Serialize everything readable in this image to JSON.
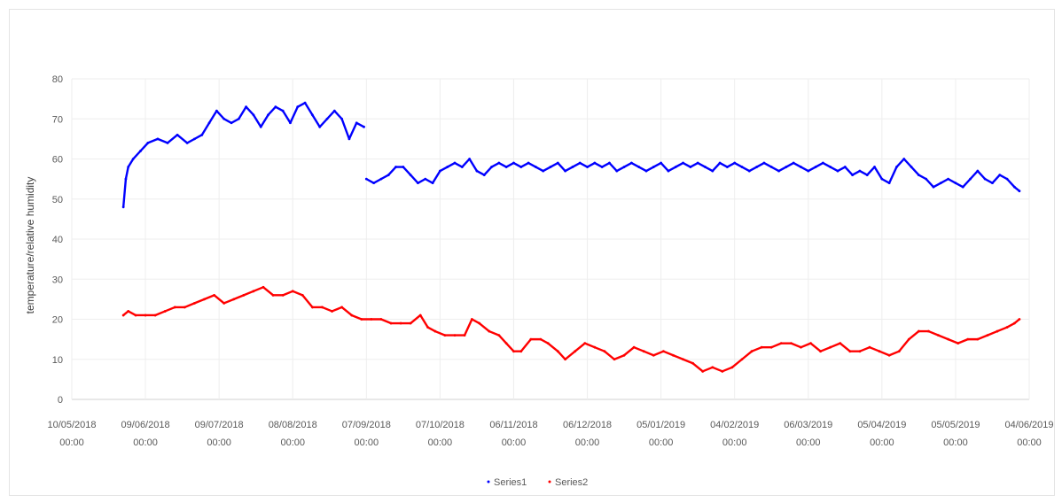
{
  "chart_data": {
    "type": "scatter",
    "title": "",
    "xlabel": "",
    "ylabel": "temperature/relative humidity",
    "ylim": [
      0,
      80
    ],
    "yticks": [
      0,
      10,
      20,
      30,
      40,
      50,
      60,
      70,
      80
    ],
    "xlim": [
      "2018-05-10",
      "2019-06-04"
    ],
    "xticks": [
      {
        "date": "2018-05-10",
        "line1": "10/05/2018",
        "line2": "00:00"
      },
      {
        "date": "2018-06-09",
        "line1": "09/06/2018",
        "line2": "00:00"
      },
      {
        "date": "2018-07-09",
        "line1": "09/07/2018",
        "line2": "00:00"
      },
      {
        "date": "2018-08-08",
        "line1": "08/08/2018",
        "line2": "00:00"
      },
      {
        "date": "2018-09-07",
        "line1": "07/09/2018",
        "line2": "00:00"
      },
      {
        "date": "2018-10-07",
        "line1": "07/10/2018",
        "line2": "00:00"
      },
      {
        "date": "2018-11-06",
        "line1": "06/11/2018",
        "line2": "00:00"
      },
      {
        "date": "2018-12-06",
        "line1": "06/12/2018",
        "line2": "00:00"
      },
      {
        "date": "2019-01-05",
        "line1": "05/01/2019",
        "line2": "00:00"
      },
      {
        "date": "2019-02-04",
        "line1": "04/02/2019",
        "line2": "00:00"
      },
      {
        "date": "2019-03-06",
        "line1": "06/03/2019",
        "line2": "00:00"
      },
      {
        "date": "2019-04-05",
        "line1": "05/04/2019",
        "line2": "00:00"
      },
      {
        "date": "2019-05-05",
        "line1": "05/05/2019",
        "line2": "00:00"
      },
      {
        "date": "2019-06-04",
        "line1": "04/06/2019",
        "line2": "00:00"
      }
    ],
    "grid": true,
    "legend": "bottom",
    "series": [
      {
        "name": "Series1",
        "color": "#0000ff",
        "points": [
          [
            "2018-05-31",
            48
          ],
          [
            "2018-06-01",
            55
          ],
          [
            "2018-06-02",
            58
          ],
          [
            "2018-06-04",
            60
          ],
          [
            "2018-06-07",
            62
          ],
          [
            "2018-06-10",
            64
          ],
          [
            "2018-06-14",
            65
          ],
          [
            "2018-06-18",
            64
          ],
          [
            "2018-06-22",
            66
          ],
          [
            "2018-06-26",
            64
          ],
          [
            "2018-06-29",
            65
          ],
          [
            "2018-07-02",
            66
          ],
          [
            "2018-07-05",
            69
          ],
          [
            "2018-07-08",
            72
          ],
          [
            "2018-07-11",
            70
          ],
          [
            "2018-07-14",
            69
          ],
          [
            "2018-07-17",
            70
          ],
          [
            "2018-07-20",
            73
          ],
          [
            "2018-07-23",
            71
          ],
          [
            "2018-07-26",
            68
          ],
          [
            "2018-07-29",
            71
          ],
          [
            "2018-08-01",
            73
          ],
          [
            "2018-08-04",
            72
          ],
          [
            "2018-08-07",
            69
          ],
          [
            "2018-08-10",
            73
          ],
          [
            "2018-08-13",
            74
          ],
          [
            "2018-08-16",
            71
          ],
          [
            "2018-08-19",
            68
          ],
          [
            "2018-08-22",
            70
          ],
          [
            "2018-08-25",
            72
          ],
          [
            "2018-08-28",
            70
          ],
          [
            "2018-08-31",
            65
          ],
          [
            "2018-09-03",
            69
          ],
          [
            "2018-09-06",
            68
          ],
          [
            "2018-09-07",
            55
          ],
          [
            "2018-09-10",
            54
          ],
          [
            "2018-09-13",
            55
          ],
          [
            "2018-09-16",
            56
          ],
          [
            "2018-09-19",
            58
          ],
          [
            "2018-09-22",
            58
          ],
          [
            "2018-09-25",
            56
          ],
          [
            "2018-09-28",
            54
          ],
          [
            "2018-10-01",
            55
          ],
          [
            "2018-10-04",
            54
          ],
          [
            "2018-10-07",
            57
          ],
          [
            "2018-10-10",
            58
          ],
          [
            "2018-10-13",
            59
          ],
          [
            "2018-10-16",
            58
          ],
          [
            "2018-10-19",
            60
          ],
          [
            "2018-10-22",
            57
          ],
          [
            "2018-10-25",
            56
          ],
          [
            "2018-10-28",
            58
          ],
          [
            "2018-10-31",
            59
          ],
          [
            "2018-11-03",
            58
          ],
          [
            "2018-11-06",
            59
          ],
          [
            "2018-11-09",
            58
          ],
          [
            "2018-11-12",
            59
          ],
          [
            "2018-11-15",
            58
          ],
          [
            "2018-11-18",
            57
          ],
          [
            "2018-11-21",
            58
          ],
          [
            "2018-11-24",
            59
          ],
          [
            "2018-11-27",
            57
          ],
          [
            "2018-11-30",
            58
          ],
          [
            "2018-12-03",
            59
          ],
          [
            "2018-12-06",
            58
          ],
          [
            "2018-12-09",
            59
          ],
          [
            "2018-12-12",
            58
          ],
          [
            "2018-12-15",
            59
          ],
          [
            "2018-12-18",
            57
          ],
          [
            "2018-12-21",
            58
          ],
          [
            "2018-12-24",
            59
          ],
          [
            "2018-12-27",
            58
          ],
          [
            "2018-12-30",
            57
          ],
          [
            "2019-01-02",
            58
          ],
          [
            "2019-01-05",
            59
          ],
          [
            "2019-01-08",
            57
          ],
          [
            "2019-01-11",
            58
          ],
          [
            "2019-01-14",
            59
          ],
          [
            "2019-01-17",
            58
          ],
          [
            "2019-01-20",
            59
          ],
          [
            "2019-01-23",
            58
          ],
          [
            "2019-01-26",
            57
          ],
          [
            "2019-01-29",
            59
          ],
          [
            "2019-02-01",
            58
          ],
          [
            "2019-02-04",
            59
          ],
          [
            "2019-02-07",
            58
          ],
          [
            "2019-02-10",
            57
          ],
          [
            "2019-02-13",
            58
          ],
          [
            "2019-02-16",
            59
          ],
          [
            "2019-02-19",
            58
          ],
          [
            "2019-02-22",
            57
          ],
          [
            "2019-02-25",
            58
          ],
          [
            "2019-02-28",
            59
          ],
          [
            "2019-03-03",
            58
          ],
          [
            "2019-03-06",
            57
          ],
          [
            "2019-03-09",
            58
          ],
          [
            "2019-03-12",
            59
          ],
          [
            "2019-03-15",
            58
          ],
          [
            "2019-03-18",
            57
          ],
          [
            "2019-03-21",
            58
          ],
          [
            "2019-03-24",
            56
          ],
          [
            "2019-03-27",
            57
          ],
          [
            "2019-03-30",
            56
          ],
          [
            "2019-04-02",
            58
          ],
          [
            "2019-04-05",
            55
          ],
          [
            "2019-04-08",
            54
          ],
          [
            "2019-04-11",
            58
          ],
          [
            "2019-04-14",
            60
          ],
          [
            "2019-04-17",
            58
          ],
          [
            "2019-04-20",
            56
          ],
          [
            "2019-04-23",
            55
          ],
          [
            "2019-04-26",
            53
          ],
          [
            "2019-04-29",
            54
          ],
          [
            "2019-05-02",
            55
          ],
          [
            "2019-05-05",
            54
          ],
          [
            "2019-05-08",
            53
          ],
          [
            "2019-05-11",
            55
          ],
          [
            "2019-05-14",
            57
          ],
          [
            "2019-05-17",
            55
          ],
          [
            "2019-05-20",
            54
          ],
          [
            "2019-05-23",
            56
          ],
          [
            "2019-05-26",
            55
          ],
          [
            "2019-05-29",
            53
          ],
          [
            "2019-05-31",
            52
          ]
        ]
      },
      {
        "name": "Series2",
        "color": "#ff0000",
        "points": [
          [
            "2018-05-31",
            21
          ],
          [
            "2018-06-02",
            22
          ],
          [
            "2018-06-05",
            21
          ],
          [
            "2018-06-09",
            21
          ],
          [
            "2018-06-13",
            21
          ],
          [
            "2018-06-17",
            22
          ],
          [
            "2018-06-21",
            23
          ],
          [
            "2018-06-25",
            23
          ],
          [
            "2018-06-29",
            24
          ],
          [
            "2018-07-03",
            25
          ],
          [
            "2018-07-07",
            26
          ],
          [
            "2018-07-11",
            24
          ],
          [
            "2018-07-15",
            25
          ],
          [
            "2018-07-19",
            26
          ],
          [
            "2018-07-23",
            27
          ],
          [
            "2018-07-27",
            28
          ],
          [
            "2018-07-31",
            26
          ],
          [
            "2018-08-04",
            26
          ],
          [
            "2018-08-08",
            27
          ],
          [
            "2018-08-12",
            26
          ],
          [
            "2018-08-16",
            23
          ],
          [
            "2018-08-20",
            23
          ],
          [
            "2018-08-24",
            22
          ],
          [
            "2018-08-28",
            23
          ],
          [
            "2018-09-01",
            21
          ],
          [
            "2018-09-05",
            20
          ],
          [
            "2018-09-09",
            20
          ],
          [
            "2018-09-13",
            20
          ],
          [
            "2018-09-17",
            19
          ],
          [
            "2018-09-21",
            19
          ],
          [
            "2018-09-25",
            19
          ],
          [
            "2018-09-29",
            21
          ],
          [
            "2018-10-02",
            18
          ],
          [
            "2018-10-05",
            17
          ],
          [
            "2018-10-09",
            16
          ],
          [
            "2018-10-13",
            16
          ],
          [
            "2018-10-17",
            16
          ],
          [
            "2018-10-20",
            20
          ],
          [
            "2018-10-23",
            19
          ],
          [
            "2018-10-27",
            17
          ],
          [
            "2018-10-31",
            16
          ],
          [
            "2018-11-03",
            14
          ],
          [
            "2018-11-06",
            12
          ],
          [
            "2018-11-09",
            12
          ],
          [
            "2018-11-13",
            15
          ],
          [
            "2018-11-17",
            15
          ],
          [
            "2018-11-20",
            14
          ],
          [
            "2018-11-24",
            12
          ],
          [
            "2018-11-27",
            10
          ],
          [
            "2018-12-01",
            12
          ],
          [
            "2018-12-05",
            14
          ],
          [
            "2018-12-09",
            13
          ],
          [
            "2018-12-13",
            12
          ],
          [
            "2018-12-17",
            10
          ],
          [
            "2018-12-21",
            11
          ],
          [
            "2018-12-25",
            13
          ],
          [
            "2018-12-29",
            12
          ],
          [
            "2019-01-02",
            11
          ],
          [
            "2019-01-06",
            12
          ],
          [
            "2019-01-10",
            11
          ],
          [
            "2019-01-14",
            10
          ],
          [
            "2019-01-18",
            9
          ],
          [
            "2019-01-22",
            7
          ],
          [
            "2019-01-26",
            8
          ],
          [
            "2019-01-30",
            7
          ],
          [
            "2019-02-03",
            8
          ],
          [
            "2019-02-07",
            10
          ],
          [
            "2019-02-11",
            12
          ],
          [
            "2019-02-15",
            13
          ],
          [
            "2019-02-19",
            13
          ],
          [
            "2019-02-23",
            14
          ],
          [
            "2019-02-27",
            14
          ],
          [
            "2019-03-03",
            13
          ],
          [
            "2019-03-07",
            14
          ],
          [
            "2019-03-11",
            12
          ],
          [
            "2019-03-15",
            13
          ],
          [
            "2019-03-19",
            14
          ],
          [
            "2019-03-23",
            12
          ],
          [
            "2019-03-27",
            12
          ],
          [
            "2019-03-31",
            13
          ],
          [
            "2019-04-04",
            12
          ],
          [
            "2019-04-08",
            11
          ],
          [
            "2019-04-12",
            12
          ],
          [
            "2019-04-16",
            15
          ],
          [
            "2019-04-20",
            17
          ],
          [
            "2019-04-24",
            17
          ],
          [
            "2019-04-28",
            16
          ],
          [
            "2019-05-02",
            15
          ],
          [
            "2019-05-06",
            14
          ],
          [
            "2019-05-10",
            15
          ],
          [
            "2019-05-14",
            15
          ],
          [
            "2019-05-18",
            16
          ],
          [
            "2019-05-22",
            17
          ],
          [
            "2019-05-26",
            18
          ],
          [
            "2019-05-29",
            19
          ],
          [
            "2019-05-31",
            20
          ]
        ]
      }
    ]
  }
}
